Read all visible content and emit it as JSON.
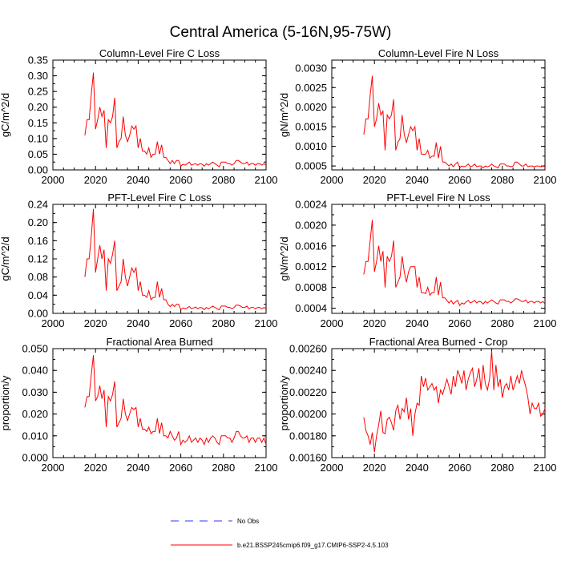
{
  "figure_title": "Central America (5-16N,95-75W)",
  "colors": {
    "model": "#ff0000",
    "obs": "#3333ff",
    "axis": "#000000"
  },
  "legend": {
    "obs_label": "No Obs",
    "model_label": "b.e21.BSSP245cmip6.f09_g17.CMIP6-SSP2-4.5.103"
  },
  "chart_data": [
    {
      "type": "line",
      "title": "Column-Level Fire C Loss",
      "xlabel": "",
      "ylabel": "gC/m^2/d",
      "xlim": [
        2000,
        2100
      ],
      "xticks": [
        2000,
        2020,
        2040,
        2060,
        2080,
        2100
      ],
      "ylim": [
        0,
        0.35
      ],
      "yticks": [
        0,
        0.05,
        0.1,
        0.15,
        0.2,
        0.25,
        0.3,
        0.35
      ],
      "ytick_labels": [
        "0.00",
        "0.05",
        "0.10",
        "0.15",
        "0.20",
        "0.25",
        "0.30",
        "0.35"
      ],
      "series": [
        {
          "name": "b.e21.BSSP245cmip6.f09_g17.CMIP6-SSP2-4.5.103",
          "x_start": 2015,
          "values": [
            0.11,
            0.16,
            0.16,
            0.24,
            0.31,
            0.13,
            0.16,
            0.2,
            0.17,
            0.19,
            0.07,
            0.16,
            0.15,
            0.17,
            0.23,
            0.07,
            0.09,
            0.1,
            0.17,
            0.11,
            0.09,
            0.11,
            0.14,
            0.13,
            0.14,
            0.07,
            0.1,
            0.06,
            0.06,
            0.05,
            0.07,
            0.04,
            0.05,
            0.05,
            0.09,
            0.05,
            0.08,
            0.04,
            0.04,
            0.03,
            0.02,
            0.03,
            0.02,
            0.03,
            0.03,
            0.012,
            0.018,
            0.015,
            0.02,
            0.025,
            0.015,
            0.018,
            0.02,
            0.015,
            0.02,
            0.018,
            0.012,
            0.02,
            0.015,
            0.02,
            0.025,
            0.02,
            0.015,
            0.01,
            0.025,
            0.025,
            0.025,
            0.02,
            0.02,
            0.015,
            0.02,
            0.03,
            0.03,
            0.025,
            0.02,
            0.02,
            0.025,
            0.015,
            0.02,
            0.02,
            0.015,
            0.02,
            0.02,
            0.015,
            0.02,
            0.015
          ]
        }
      ]
    },
    {
      "type": "line",
      "title": "Column-Level Fire N Loss",
      "xlabel": "",
      "ylabel": "gN/m^2/d",
      "xlim": [
        2000,
        2100
      ],
      "xticks": [
        2000,
        2020,
        2040,
        2060,
        2080,
        2100
      ],
      "ylim": [
        0.0004,
        0.0032
      ],
      "yticks": [
        0.0005,
        0.001,
        0.0015,
        0.002,
        0.0025,
        0.003
      ],
      "ytick_labels": [
        "0.0005",
        "0.0010",
        "0.0015",
        "0.0020",
        "0.0025",
        "0.0030"
      ],
      "series": [
        {
          "name": "b.e21.BSSP245cmip6.f09_g17.CMIP6-SSP2-4.5.103",
          "x_start": 2015,
          "values": [
            0.0013,
            0.0017,
            0.0017,
            0.0023,
            0.0028,
            0.0015,
            0.0017,
            0.0021,
            0.0018,
            0.0019,
            0.0009,
            0.0018,
            0.0017,
            0.0018,
            0.0022,
            0.0009,
            0.0011,
            0.0012,
            0.0018,
            0.0013,
            0.0011,
            0.0013,
            0.0015,
            0.0014,
            0.0015,
            0.0009,
            0.0012,
            0.0008,
            0.0008,
            0.0008,
            0.0009,
            0.0007,
            0.00075,
            0.00075,
            0.0011,
            0.0007,
            0.001,
            0.0006,
            0.0006,
            0.00055,
            0.0005,
            0.00055,
            0.00048,
            0.00055,
            0.0006,
            0.00045,
            0.0005,
            0.00048,
            0.0005,
            0.00055,
            0.00048,
            0.0005,
            0.00055,
            0.00048,
            0.0005,
            0.0005,
            0.00045,
            0.0005,
            0.00048,
            0.0005,
            0.00055,
            0.0005,
            0.00048,
            0.00045,
            0.00055,
            0.00055,
            0.00055,
            0.0005,
            0.0005,
            0.00048,
            0.0005,
            0.0006,
            0.0006,
            0.00055,
            0.0005,
            0.0005,
            0.00055,
            0.00048,
            0.0005,
            0.0005,
            0.00048,
            0.0005,
            0.0005,
            0.00048,
            0.0005,
            0.00048
          ]
        }
      ]
    },
    {
      "type": "line",
      "title": "PFT-Level Fire C Loss",
      "xlabel": "",
      "ylabel": "gC/m^2/d",
      "xlim": [
        2000,
        2100
      ],
      "xticks": [
        2000,
        2020,
        2040,
        2060,
        2080,
        2100
      ],
      "ylim": [
        0,
        0.24
      ],
      "yticks": [
        0,
        0.04,
        0.08,
        0.12,
        0.16,
        0.2,
        0.24
      ],
      "ytick_labels": [
        "0.00",
        "0.04",
        "0.08",
        "0.12",
        "0.16",
        "0.20",
        "0.24"
      ],
      "series": [
        {
          "name": "b.e21.BSSP245cmip6.f09_g17.CMIP6-SSP2-4.5.103",
          "x_start": 2015,
          "values": [
            0.08,
            0.12,
            0.12,
            0.17,
            0.23,
            0.09,
            0.12,
            0.15,
            0.12,
            0.14,
            0.05,
            0.12,
            0.11,
            0.13,
            0.16,
            0.05,
            0.06,
            0.07,
            0.12,
            0.08,
            0.06,
            0.08,
            0.1,
            0.09,
            0.1,
            0.05,
            0.07,
            0.04,
            0.04,
            0.035,
            0.05,
            0.03,
            0.035,
            0.035,
            0.07,
            0.035,
            0.055,
            0.03,
            0.03,
            0.02,
            0.015,
            0.02,
            0.015,
            0.02,
            0.02,
            0.008,
            0.012,
            0.01,
            0.012,
            0.015,
            0.01,
            0.012,
            0.014,
            0.01,
            0.013,
            0.012,
            0.008,
            0.013,
            0.01,
            0.013,
            0.016,
            0.013,
            0.01,
            0.008,
            0.016,
            0.016,
            0.016,
            0.013,
            0.013,
            0.01,
            0.013,
            0.018,
            0.018,
            0.016,
            0.013,
            0.013,
            0.016,
            0.01,
            0.013,
            0.013,
            0.01,
            0.013,
            0.013,
            0.01,
            0.013,
            0.01
          ]
        }
      ]
    },
    {
      "type": "line",
      "title": "PFT-Level Fire N Loss",
      "xlabel": "",
      "ylabel": "gN/m^2/d",
      "xlim": [
        2000,
        2100
      ],
      "xticks": [
        2000,
        2020,
        2040,
        2060,
        2080,
        2100
      ],
      "ylim": [
        0.0003,
        0.0024
      ],
      "yticks": [
        0.0004,
        0.0008,
        0.0012,
        0.0016,
        0.002,
        0.0024
      ],
      "ytick_labels": [
        "0.0004",
        "0.0008",
        "0.0012",
        "0.0016",
        "0.0020",
        "0.0024"
      ],
      "series": [
        {
          "name": "b.e21.BSSP245cmip6.f09_g17.CMIP6-SSP2-4.5.103",
          "x_start": 2015,
          "values": [
            0.00105,
            0.0013,
            0.0013,
            0.0017,
            0.0021,
            0.0011,
            0.0013,
            0.0016,
            0.0013,
            0.0015,
            0.0008,
            0.0014,
            0.0013,
            0.0014,
            0.0017,
            0.0008,
            0.0009,
            0.001,
            0.0014,
            0.0011,
            0.0009,
            0.0011,
            0.0012,
            0.0012,
            0.0012,
            0.0008,
            0.001,
            0.0007,
            0.0007,
            0.00068,
            0.0008,
            0.00065,
            0.0007,
            0.0007,
            0.001,
            0.00065,
            0.0009,
            0.0006,
            0.0006,
            0.00055,
            0.0005,
            0.00055,
            0.00048,
            0.00052,
            0.00055,
            0.00045,
            0.0005,
            0.00048,
            0.00052,
            0.00055,
            0.0005,
            0.00052,
            0.00055,
            0.0005,
            0.00053,
            0.00052,
            0.00048,
            0.00053,
            0.0005,
            0.00053,
            0.00056,
            0.00053,
            0.0005,
            0.00048,
            0.00056,
            0.00056,
            0.00056,
            0.00053,
            0.00053,
            0.0005,
            0.00053,
            0.00058,
            0.00058,
            0.00056,
            0.00053,
            0.00053,
            0.00056,
            0.0005,
            0.00053,
            0.00053,
            0.0005,
            0.00053,
            0.00053,
            0.0005,
            0.00053,
            0.00048
          ]
        }
      ]
    },
    {
      "type": "line",
      "title": "Fractional Area Burned",
      "xlabel": "",
      "ylabel": "proportion/y",
      "xlim": [
        2000,
        2100
      ],
      "xticks": [
        2000,
        2020,
        2040,
        2060,
        2080,
        2100
      ],
      "ylim": [
        0,
        0.05
      ],
      "yticks": [
        0,
        0.01,
        0.02,
        0.03,
        0.04,
        0.05
      ],
      "ytick_labels": [
        "0.000",
        "0.010",
        "0.020",
        "0.030",
        "0.040",
        "0.050"
      ],
      "series": [
        {
          "name": "b.e21.BSSP245cmip6.f09_g17.CMIP6-SSP2-4.5.103",
          "x_start": 2015,
          "values": [
            0.023,
            0.028,
            0.028,
            0.038,
            0.047,
            0.026,
            0.028,
            0.033,
            0.027,
            0.031,
            0.014,
            0.028,
            0.026,
            0.029,
            0.035,
            0.014,
            0.016,
            0.018,
            0.027,
            0.02,
            0.017,
            0.02,
            0.023,
            0.022,
            0.023,
            0.014,
            0.018,
            0.013,
            0.013,
            0.012,
            0.014,
            0.011,
            0.012,
            0.012,
            0.018,
            0.011,
            0.016,
            0.01,
            0.01,
            0.009,
            0.012,
            0.01,
            0.008,
            0.009,
            0.012,
            0.006,
            0.008,
            0.007,
            0.008,
            0.01,
            0.007,
            0.008,
            0.009,
            0.007,
            0.009,
            0.008,
            0.006,
            0.009,
            0.007,
            0.009,
            0.01,
            0.009,
            0.007,
            0.006,
            0.01,
            0.01,
            0.01,
            0.009,
            0.009,
            0.007,
            0.009,
            0.012,
            0.012,
            0.01,
            0.009,
            0.009,
            0.01,
            0.007,
            0.009,
            0.009,
            0.007,
            0.009,
            0.009,
            0.007,
            0.009,
            0.006
          ]
        }
      ]
    },
    {
      "type": "line",
      "title": "Fractional Area Burned - Crop",
      "xlabel": "",
      "ylabel": "proportion/y",
      "xlim": [
        2000,
        2100
      ],
      "xticks": [
        2000,
        2020,
        2040,
        2060,
        2080,
        2100
      ],
      "ylim": [
        0.0016,
        0.0026
      ],
      "yticks": [
        0.0016,
        0.0018,
        0.002,
        0.0022,
        0.0024,
        0.0026
      ],
      "ytick_labels": [
        "0.00160",
        "0.00180",
        "0.00200",
        "0.00220",
        "0.00240",
        "0.00260"
      ],
      "series": [
        {
          "name": "b.e21.BSSP245cmip6.f09_g17.CMIP6-SSP2-4.5.103",
          "x_start": 2015,
          "values": [
            0.00197,
            0.00185,
            0.0018,
            0.00172,
            0.00183,
            0.00165,
            0.0018,
            0.0019,
            0.00203,
            0.00183,
            0.00182,
            0.00195,
            0.00197,
            0.00192,
            0.00185,
            0.00203,
            0.00208,
            0.00195,
            0.00205,
            0.00202,
            0.00215,
            0.00195,
            0.00205,
            0.0018,
            0.002,
            0.0021,
            0.00208,
            0.00235,
            0.00225,
            0.00233,
            0.00222,
            0.00225,
            0.00228,
            0.00222,
            0.00225,
            0.0021,
            0.00222,
            0.00218,
            0.00225,
            0.00232,
            0.00225,
            0.00218,
            0.00235,
            0.00225,
            0.0024,
            0.00235,
            0.00228,
            0.0024,
            0.00222,
            0.00232,
            0.00238,
            0.00242,
            0.00225,
            0.00232,
            0.00242,
            0.00222,
            0.00245,
            0.00228,
            0.00222,
            0.00232,
            0.00258,
            0.00222,
            0.00245,
            0.00225,
            0.00232,
            0.00215,
            0.00225,
            0.00228,
            0.00222,
            0.00235,
            0.00222,
            0.00228,
            0.00235,
            0.00228,
            0.0024,
            0.00232,
            0.00225,
            0.00215,
            0.002,
            0.0021,
            0.00205,
            0.00205,
            0.0021,
            0.00198,
            0.002,
            0.00205
          ]
        }
      ]
    }
  ]
}
